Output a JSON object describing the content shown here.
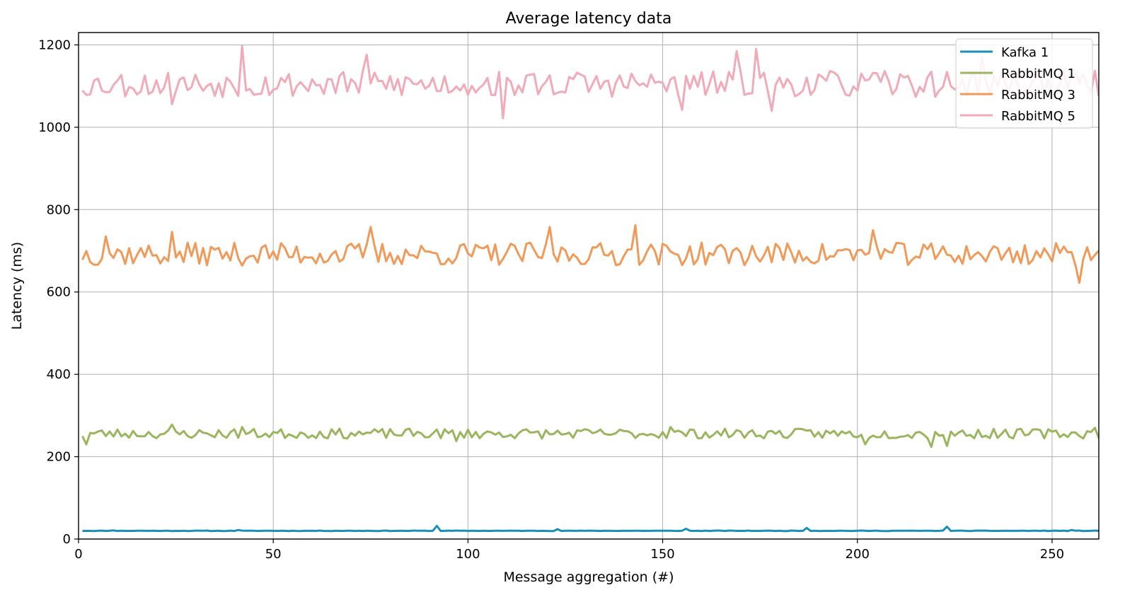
{
  "chart_data": {
    "type": "line",
    "title": "Average latency data",
    "xlabel": "Message aggregation (#)",
    "ylabel": "Latency (ms)",
    "xlim": [
      0,
      262
    ],
    "ylim": [
      0,
      1230
    ],
    "xticks": [
      0,
      50,
      100,
      150,
      200,
      250
    ],
    "yticks": [
      0,
      200,
      400,
      600,
      800,
      1000,
      1200
    ],
    "grid": true,
    "legend_position": "top-right",
    "series": [
      {
        "name": "Kafka 1",
        "color": "#1a8fb8",
        "base": 20,
        "amplitude": 0.6,
        "seed": 11,
        "spikes": [
          [
            9,
            21
          ],
          [
            41,
            22
          ],
          [
            92,
            32
          ],
          [
            123,
            24
          ],
          [
            156,
            25
          ],
          [
            187,
            27
          ],
          [
            223,
            30
          ],
          [
            255,
            22
          ]
        ]
      },
      {
        "name": "RabbitMQ 1",
        "color": "#9ab55d",
        "base": 256,
        "amplitude": 12,
        "seed": 23,
        "spikes": [
          [
            2,
            230
          ],
          [
            24,
            278
          ],
          [
            42,
            272
          ],
          [
            97,
            238
          ],
          [
            152,
            272
          ],
          [
            202,
            230
          ],
          [
            219,
            224
          ],
          [
            223,
            226
          ],
          [
            261,
            270
          ]
        ]
      },
      {
        "name": "RabbitMQ 3",
        "color": "#f09a5a",
        "base": 692,
        "amplitude": 28,
        "seed": 37,
        "spikes": [
          [
            7,
            735
          ],
          [
            24,
            746
          ],
          [
            75,
            758
          ],
          [
            121,
            758
          ],
          [
            143,
            762
          ],
          [
            204,
            750
          ],
          [
            257,
            622
          ],
          [
            261,
            690
          ]
        ]
      },
      {
        "name": "RabbitMQ 5",
        "color": "#f0aab8",
        "base": 1105,
        "amplitude": 32,
        "seed": 53,
        "spikes": [
          [
            24,
            1056
          ],
          [
            42,
            1197
          ],
          [
            74,
            1176
          ],
          [
            109,
            1022
          ],
          [
            155,
            1042
          ],
          [
            169,
            1185
          ],
          [
            174,
            1190
          ],
          [
            178,
            1040
          ],
          [
            232,
            1170
          ]
        ]
      }
    ]
  }
}
